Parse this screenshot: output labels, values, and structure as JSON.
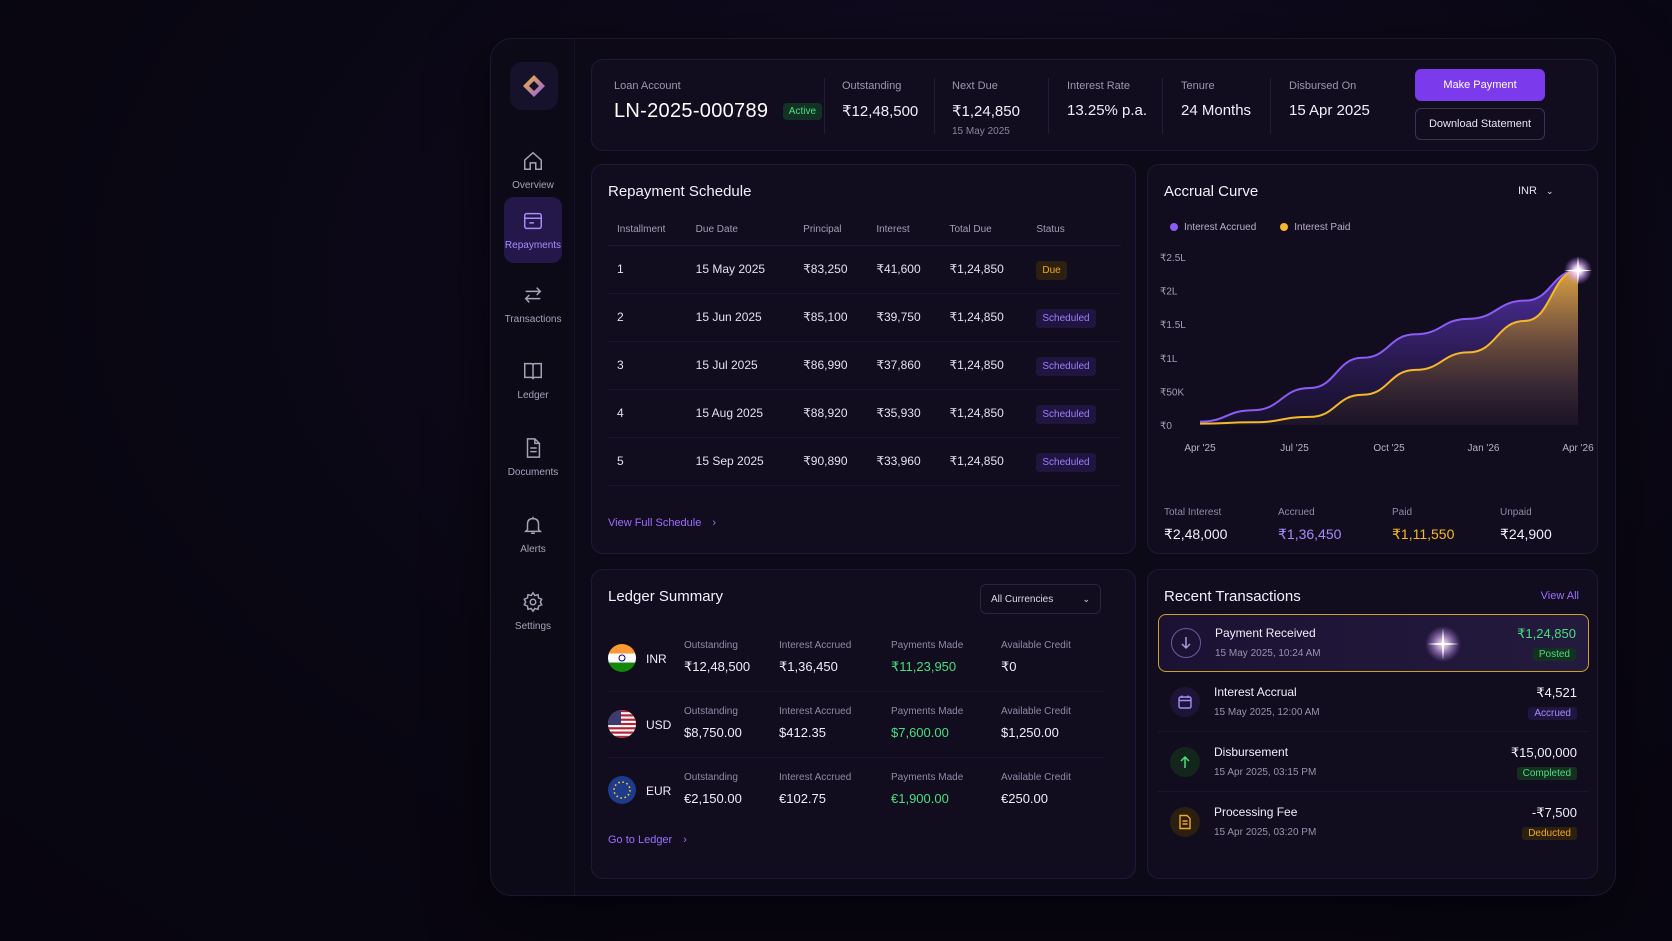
{
  "colors": {
    "accent": "#7c3aed",
    "accrued": "#8b5cf6",
    "paid": "#f5b829",
    "green": "#4ade80",
    "orange": "#f5a623"
  },
  "nav": [
    {
      "label": "Overview",
      "icon": "home-icon"
    },
    {
      "label": "Repayments",
      "icon": "card-icon",
      "active": true
    },
    {
      "label": "Transactions",
      "icon": "swap-arrows-icon"
    },
    {
      "label": "Ledger",
      "icon": "book-icon"
    },
    {
      "label": "Documents",
      "icon": "document-icon"
    },
    {
      "label": "Alerts",
      "icon": "bell-icon"
    },
    {
      "label": "Settings",
      "icon": "gear-icon"
    }
  ],
  "header": {
    "loan_account_label": "Loan Account",
    "loan_account": "LN-2025-000789",
    "status": "Active",
    "outstanding_label": "Outstanding",
    "outstanding": "₹12,48,500",
    "next_due_label": "Next Due",
    "next_due": "₹1,24,850",
    "next_due_date": "15 May 2025",
    "rate_label": "Interest Rate",
    "rate": "13.25% p.a.",
    "tenure_label": "Tenure",
    "tenure": "24 Months",
    "disbursed_label": "Disbursed On",
    "disbursed": "15 Apr 2025",
    "make_payment": "Make Payment",
    "download": "Download Statement"
  },
  "schedule": {
    "title": "Repayment Schedule",
    "columns": [
      "Installment",
      "Due Date",
      "Principal",
      "Interest",
      "Total Due",
      "Status"
    ],
    "rows": [
      [
        "1",
        "15 May 2025",
        "₹83,250",
        "₹41,600",
        "₹1,24,850",
        "Due"
      ],
      [
        "2",
        "15 Jun 2025",
        "₹85,100",
        "₹39,750",
        "₹1,24,850",
        "Scheduled"
      ],
      [
        "3",
        "15 Jul 2025",
        "₹86,990",
        "₹37,860",
        "₹1,24,850",
        "Scheduled"
      ],
      [
        "4",
        "15 Aug 2025",
        "₹88,920",
        "₹35,930",
        "₹1,24,850",
        "Scheduled"
      ],
      [
        "5",
        "15 Sep 2025",
        "₹90,890",
        "₹33,960",
        "₹1,24,850",
        "Scheduled"
      ]
    ],
    "view_full": "View Full Schedule"
  },
  "accrual": {
    "title": "Accrual Curve",
    "currency": "INR",
    "legend_accrued": "Interest Accrued",
    "legend_paid": "Interest Paid",
    "stats": [
      {
        "label": "Total Interest",
        "value": "₹2,48,000",
        "color": "#f1eef8"
      },
      {
        "label": "Accrued",
        "value": "₹1,36,450",
        "color": "#a78bfa"
      },
      {
        "label": "Paid",
        "value": "₹1,11,550",
        "color": "#f5b829"
      },
      {
        "label": "Unpaid",
        "value": "₹24,900",
        "color": "#f1eef8"
      }
    ]
  },
  "chart_data": {
    "type": "area",
    "ytick_labels": [
      "₹0",
      "₹50K",
      "₹1L",
      "₹1.5L",
      "₹2L",
      "₹2.5L"
    ],
    "ytick_values": [
      0,
      50000,
      100000,
      150000,
      200000,
      250000
    ],
    "xtick_labels": [
      "Apr '25",
      "Jul '25",
      "Oct '25",
      "Jan '26",
      "Apr '26"
    ],
    "ylim": [
      0,
      250000
    ],
    "series": [
      {
        "name": "Interest Accrued",
        "values": [
          5000,
          22000,
          55000,
          100000,
          135000,
          158000,
          185000,
          230000
        ]
      },
      {
        "name": "Interest Paid",
        "values": [
          2000,
          4000,
          12000,
          45000,
          82000,
          108000,
          155000,
          230000
        ]
      }
    ],
    "x_fraction": [
      0,
      0.14,
      0.29,
      0.43,
      0.57,
      0.71,
      0.86,
      1
    ]
  },
  "ledger": {
    "title": "Ledger Summary",
    "filter": "All Currencies",
    "col_labels": [
      "Outstanding",
      "Interest Accrued",
      "Payments Made",
      "Available Credit"
    ],
    "rows": [
      {
        "code": "INR",
        "flag": "india-flag-icon",
        "values": [
          "₹12,48,500",
          "₹1,36,450",
          "₹11,23,950",
          "₹0"
        ]
      },
      {
        "code": "USD",
        "flag": "usa-flag-icon",
        "values": [
          "$8,750.00",
          "$412.35",
          "$7,600.00",
          "$1,250.00"
        ]
      },
      {
        "code": "EUR",
        "flag": "eu-flag-icon",
        "values": [
          "€2,150.00",
          "€102.75",
          "€1,900.00",
          "€250.00"
        ]
      }
    ],
    "go": "Go to Ledger"
  },
  "recent": {
    "title": "Recent Transactions",
    "view_all": "View All",
    "items": [
      {
        "title": "Payment Received",
        "date": "15 May 2025, 10:24 AM",
        "amount": "₹1,24,850",
        "status": "Posted",
        "icon": "arrow-down-icon"
      },
      {
        "title": "Interest Accrual",
        "date": "15 May 2025, 12:00 AM",
        "amount": "₹4,521",
        "status": "Accrued",
        "icon": "calendar-icon"
      },
      {
        "title": "Disbursement",
        "date": "15 Apr 2025, 03:15 PM",
        "amount": "₹15,00,000",
        "status": "Completed",
        "icon": "arrow-up-icon"
      },
      {
        "title": "Processing Fee",
        "date": "15 Apr 2025, 03:20 PM",
        "amount": "-₹7,500",
        "status": "Deducted",
        "icon": "receipt-icon"
      }
    ]
  }
}
